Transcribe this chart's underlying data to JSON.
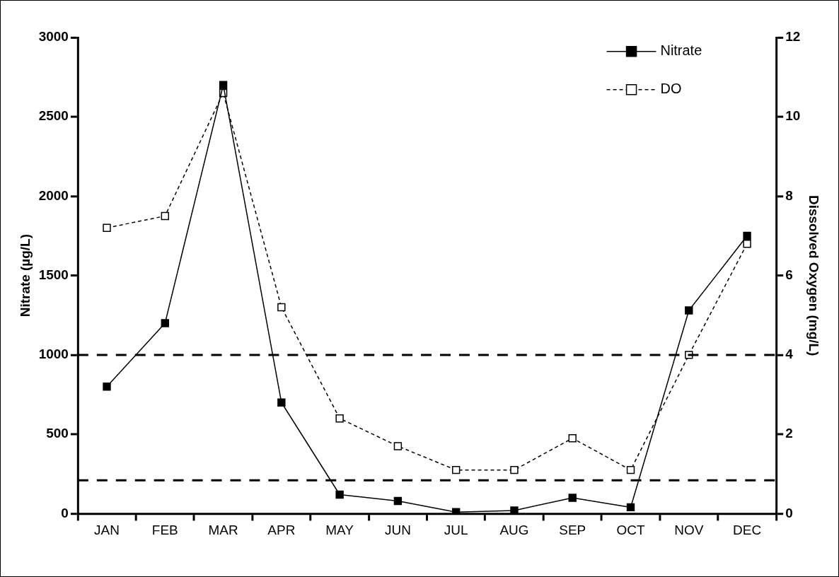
{
  "chart_data": {
    "type": "line",
    "ylabel": "Nitrate (µg/L)",
    "y2label": "Dissolved Oxygen (mg/L)",
    "categories": [
      "JAN",
      "FEB",
      "MAR",
      "APR",
      "MAY",
      "JUN",
      "JUL",
      "AUG",
      "SEP",
      "OCT",
      "NOV",
      "DEC"
    ],
    "series": [
      {
        "name": "Nitrate",
        "color": "#000000",
        "line_style": "solid",
        "marker": "square",
        "values": [
          800,
          1200,
          2700,
          700,
          120,
          80,
          10,
          20,
          100,
          40,
          1280,
          1750
        ]
      },
      {
        "name": "DO",
        "color": "#000000",
        "line_style": "dashed",
        "marker": "square",
        "axis": "y2",
        "values": [
          7.2,
          7.5,
          10.6,
          5.2,
          2.4,
          1.7,
          1.1,
          1.1,
          1.9,
          1.1,
          4.0,
          6.8
        ]
      }
    ],
    "ylim": [
      0,
      3000
    ],
    "yticks": [
      0,
      500,
      1000,
      1500,
      2000,
      2500,
      3000
    ],
    "y2lim": [
      0,
      12
    ],
    "y2ticks": [
      0,
      2,
      4,
      6,
      8,
      10,
      12
    ],
    "ref_lines": [
      {
        "axis": "y",
        "value": 1000,
        "color": "#000000",
        "line_style": "dashed"
      },
      {
        "axis": "y",
        "value": 210,
        "color": "#000000",
        "line_style": "dashed"
      }
    ],
    "grid": false,
    "legend": "top right"
  }
}
